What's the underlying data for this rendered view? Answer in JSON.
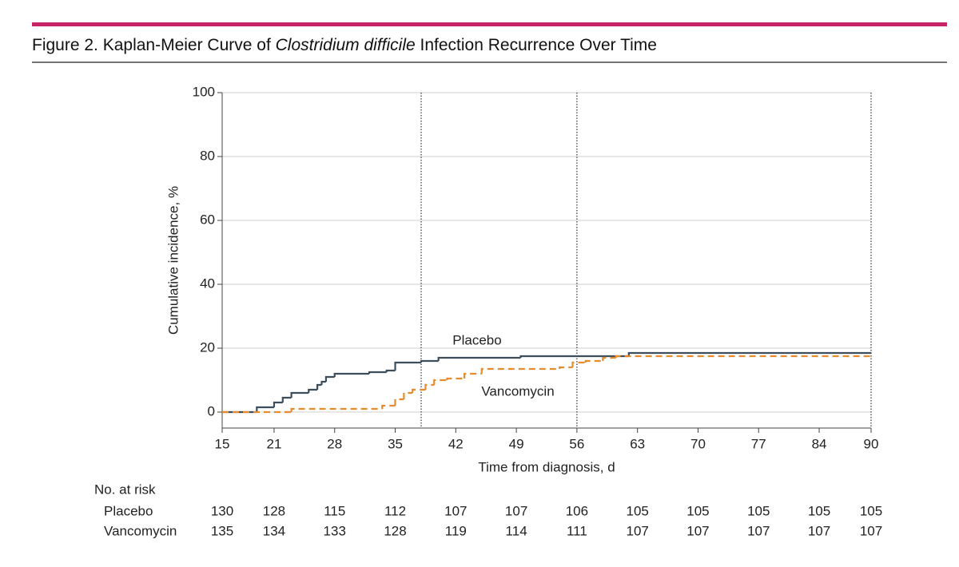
{
  "chart_data": {
    "type": "step",
    "title": [
      "Figure 2. Kaplan-Meier Curve of ",
      "Clostridium difficile",
      " Infection Recurrence Over Time"
    ],
    "x_label": "Time from diagnosis, d",
    "y_label": "Cumulative incidence, %",
    "xlim": [
      15,
      90
    ],
    "ylim": [
      0,
      100
    ],
    "xticks": [
      15,
      21,
      28,
      35,
      42,
      49,
      56,
      63,
      70,
      77,
      84,
      90
    ],
    "yticks": [
      0,
      20,
      40,
      60,
      80,
      100
    ],
    "grid": true,
    "vlines": [
      38,
      56,
      90
    ],
    "series": [
      {
        "name": "Placebo",
        "color": "#3c4e5b",
        "dashed": false,
        "x": [
          15,
          19,
          21,
          22,
          23,
          25,
          26,
          26.5,
          27,
          28,
          32,
          34,
          35,
          38,
          40,
          49.5,
          62,
          90
        ],
        "values": [
          0,
          1.5,
          3,
          4.5,
          6,
          7,
          8.5,
          9.5,
          11,
          12,
          12.5,
          13,
          15.5,
          16,
          17,
          17.5,
          18.5,
          18.5
        ]
      },
      {
        "name": "Vancomycin",
        "color": "#e58c2e",
        "dashed": true,
        "x": [
          15,
          23,
          33.5,
          35,
          36,
          37,
          38.5,
          39.5,
          41,
          43,
          45,
          54,
          55.5,
          57,
          59,
          60.5,
          90
        ],
        "values": [
          0,
          1,
          2,
          4,
          6,
          7,
          8.5,
          10,
          10.5,
          12,
          13.5,
          14,
          15.5,
          16,
          17,
          17.5,
          17.5
        ]
      }
    ],
    "risk_table": {
      "title": "No. at risk",
      "rows": [
        {
          "name": "Placebo",
          "values": [
            130,
            128,
            115,
            112,
            107,
            107,
            106,
            105,
            105,
            105,
            105,
            105
          ]
        },
        {
          "name": "Vancomycin",
          "values": [
            135,
            134,
            133,
            128,
            119,
            114,
            111,
            107,
            107,
            107,
            107,
            107
          ]
        }
      ]
    }
  }
}
